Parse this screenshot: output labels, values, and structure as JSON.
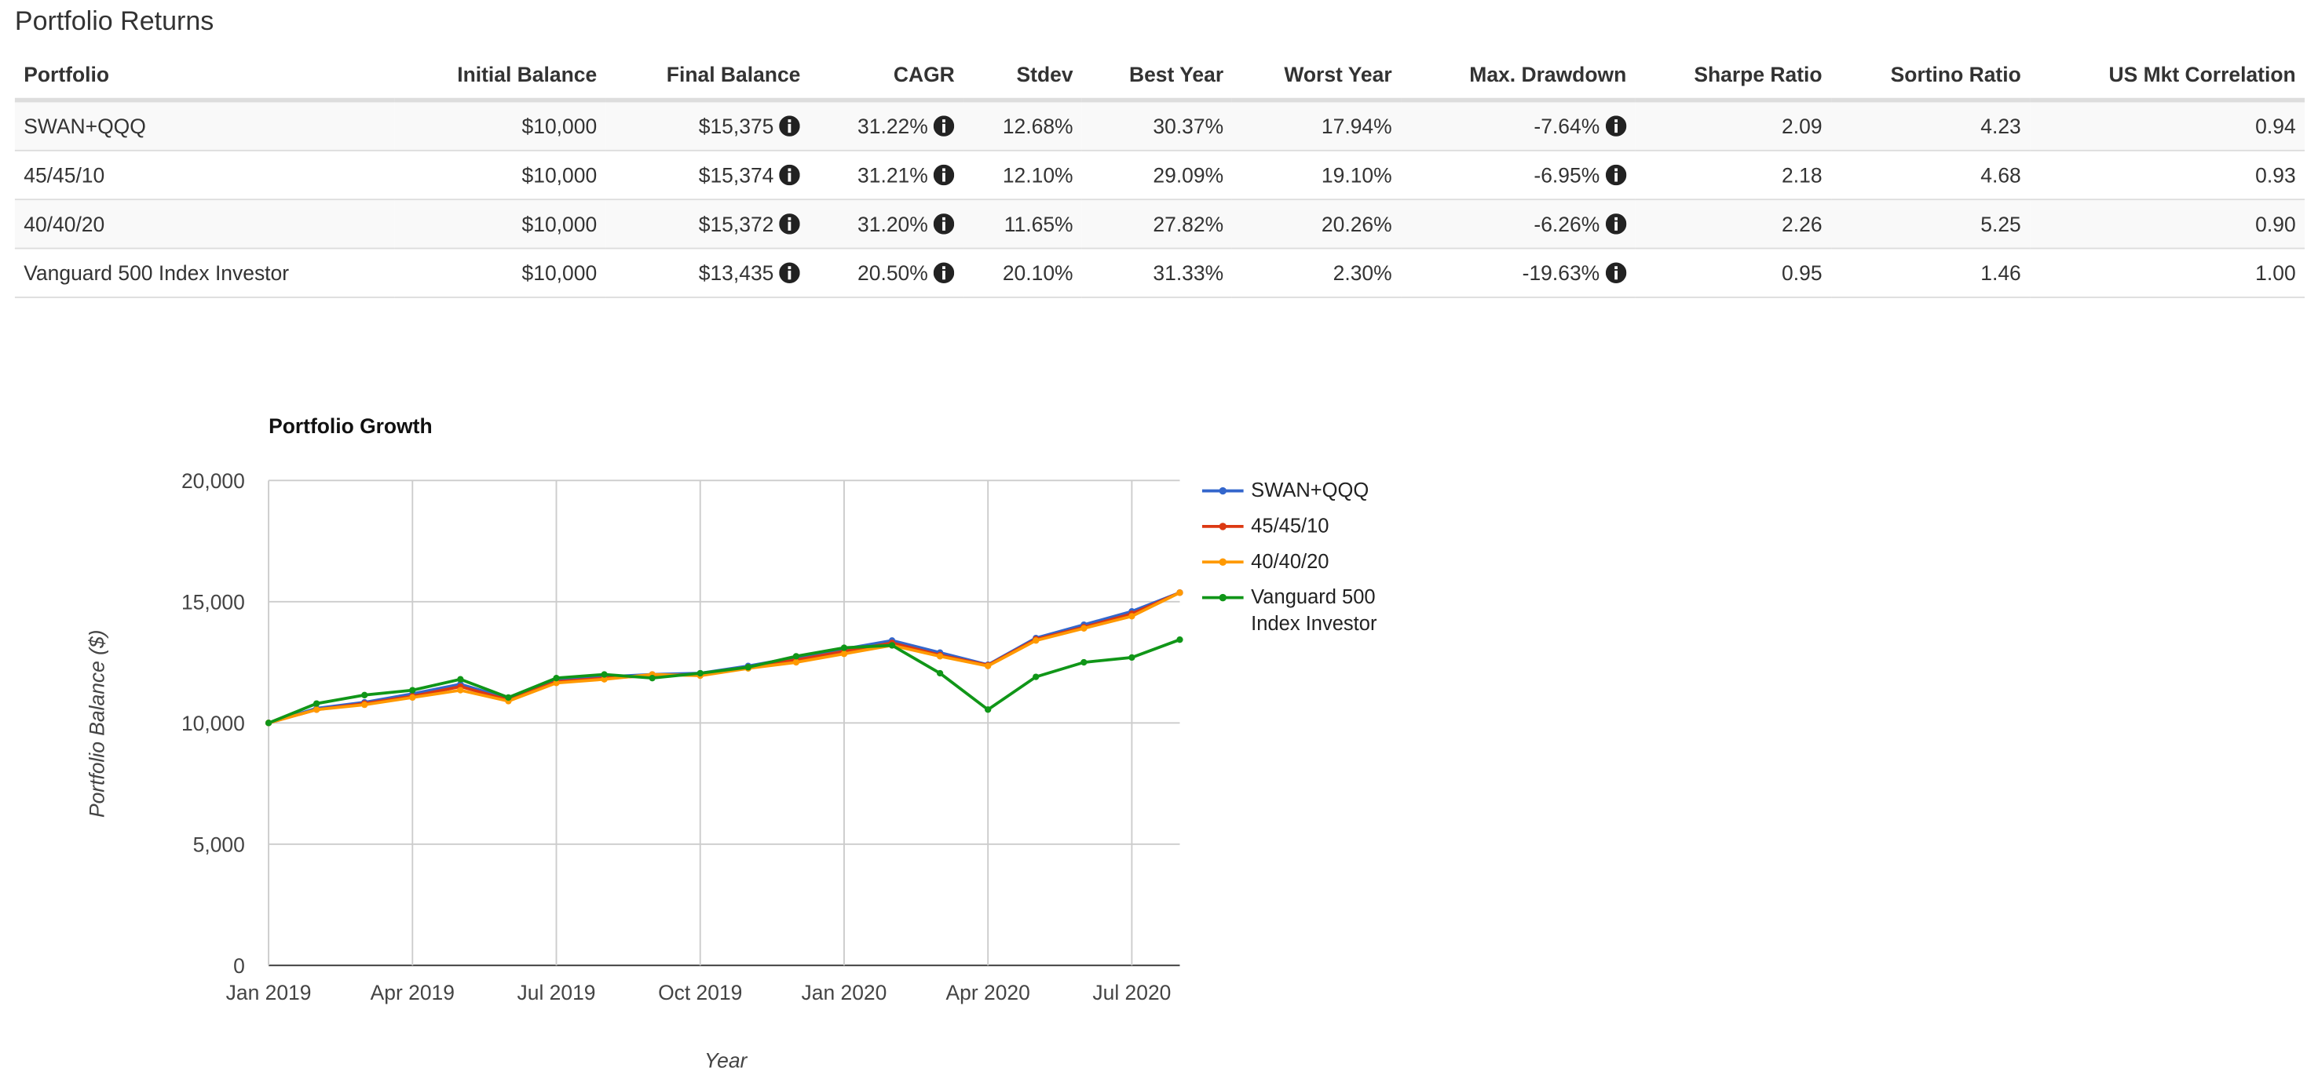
{
  "header": {
    "title": "Portfolio Returns"
  },
  "table": {
    "columns": [
      "Portfolio",
      "Initial Balance",
      "Final Balance",
      "CAGR",
      "Stdev",
      "Best Year",
      "Worst Year",
      "Max. Drawdown",
      "Sharpe Ratio",
      "Sortino Ratio",
      "US Mkt Correlation"
    ],
    "rows": [
      [
        "SWAN+QQQ",
        "$10,000",
        "$15,375",
        "31.22%",
        "12.68%",
        "30.37%",
        "17.94%",
        "-7.64%",
        "2.09",
        "4.23",
        "0.94"
      ],
      [
        "45/45/10",
        "$10,000",
        "$15,374",
        "31.21%",
        "12.10%",
        "29.09%",
        "19.10%",
        "-6.95%",
        "2.18",
        "4.68",
        "0.93"
      ],
      [
        "40/40/20",
        "$10,000",
        "$15,372",
        "31.20%",
        "11.65%",
        "27.82%",
        "20.26%",
        "-6.26%",
        "2.26",
        "5.25",
        "0.90"
      ],
      [
        "Vanguard 500 Index Investor",
        "$10,000",
        "$13,435",
        "20.50%",
        "20.10%",
        "31.33%",
        "2.30%",
        "-19.63%",
        "0.95",
        "1.46",
        "1.00"
      ]
    ]
  },
  "chart_data": {
    "type": "line",
    "title": "Portfolio Growth",
    "x_label": "Year",
    "y_label": "Portfolio Balance ($)",
    "x": [
      "2019-01",
      "2019-02",
      "2019-03",
      "2019-04",
      "2019-05",
      "2019-06",
      "2019-07",
      "2019-08",
      "2019-09",
      "2019-10",
      "2019-11",
      "2019-12",
      "2020-01",
      "2020-02",
      "2020-03",
      "2020-04",
      "2020-05",
      "2020-06",
      "2020-07",
      "2020-08"
    ],
    "xlim": [
      "2019-01",
      "2020-08"
    ],
    "xticks": [
      {
        "value": "2019-01",
        "label": "Jan 2019"
      },
      {
        "value": "2019-04",
        "label": "Apr 2019"
      },
      {
        "value": "2019-07",
        "label": "Jul 2019"
      },
      {
        "value": "2019-10",
        "label": "Oct 2019"
      },
      {
        "value": "2020-01",
        "label": "Jan 2020"
      },
      {
        "value": "2020-04",
        "label": "Apr 2020"
      },
      {
        "value": "2020-07",
        "label": "Jul 2020"
      }
    ],
    "ylim": [
      0,
      20000
    ],
    "yticks": [
      0,
      {
        "value": 5000,
        "label": "5,000"
      },
      {
        "value": 10000,
        "label": "10,000"
      },
      {
        "value": 15000,
        "label": "15,000"
      },
      {
        "value": 20000,
        "label": "20,000"
      }
    ],
    "grid": true,
    "series": [
      {
        "name": "SWAN+QQQ",
        "color": "#3366cc",
        "values": [
          10000,
          10600,
          10850,
          11200,
          11600,
          11000,
          11800,
          11900,
          12000,
          12050,
          12350,
          12700,
          13050,
          13400,
          12900,
          12400,
          13500,
          14050,
          14600,
          15375
        ]
      },
      {
        "name": "45/45/10",
        "color": "#dc3912",
        "values": [
          10000,
          10550,
          10800,
          11100,
          11500,
          10950,
          11700,
          11850,
          11950,
          12000,
          12300,
          12600,
          12950,
          13300,
          12800,
          12380,
          13450,
          13950,
          14500,
          15374
        ]
      },
      {
        "name": "40/40/20",
        "color": "#ff9900",
        "values": [
          10000,
          10550,
          10750,
          11050,
          11350,
          10900,
          11650,
          11800,
          12000,
          11950,
          12250,
          12500,
          12850,
          13200,
          12750,
          12350,
          13400,
          13900,
          14400,
          15372
        ]
      },
      {
        "name": "Vanguard 500 Index Investor",
        "color": "#109618",
        "values": [
          10000,
          10800,
          11150,
          11350,
          11800,
          11050,
          11850,
          12000,
          11850,
          12050,
          12300,
          12750,
          13100,
          13200,
          12050,
          10550,
          11900,
          12500,
          12700,
          13435
        ]
      }
    ]
  }
}
